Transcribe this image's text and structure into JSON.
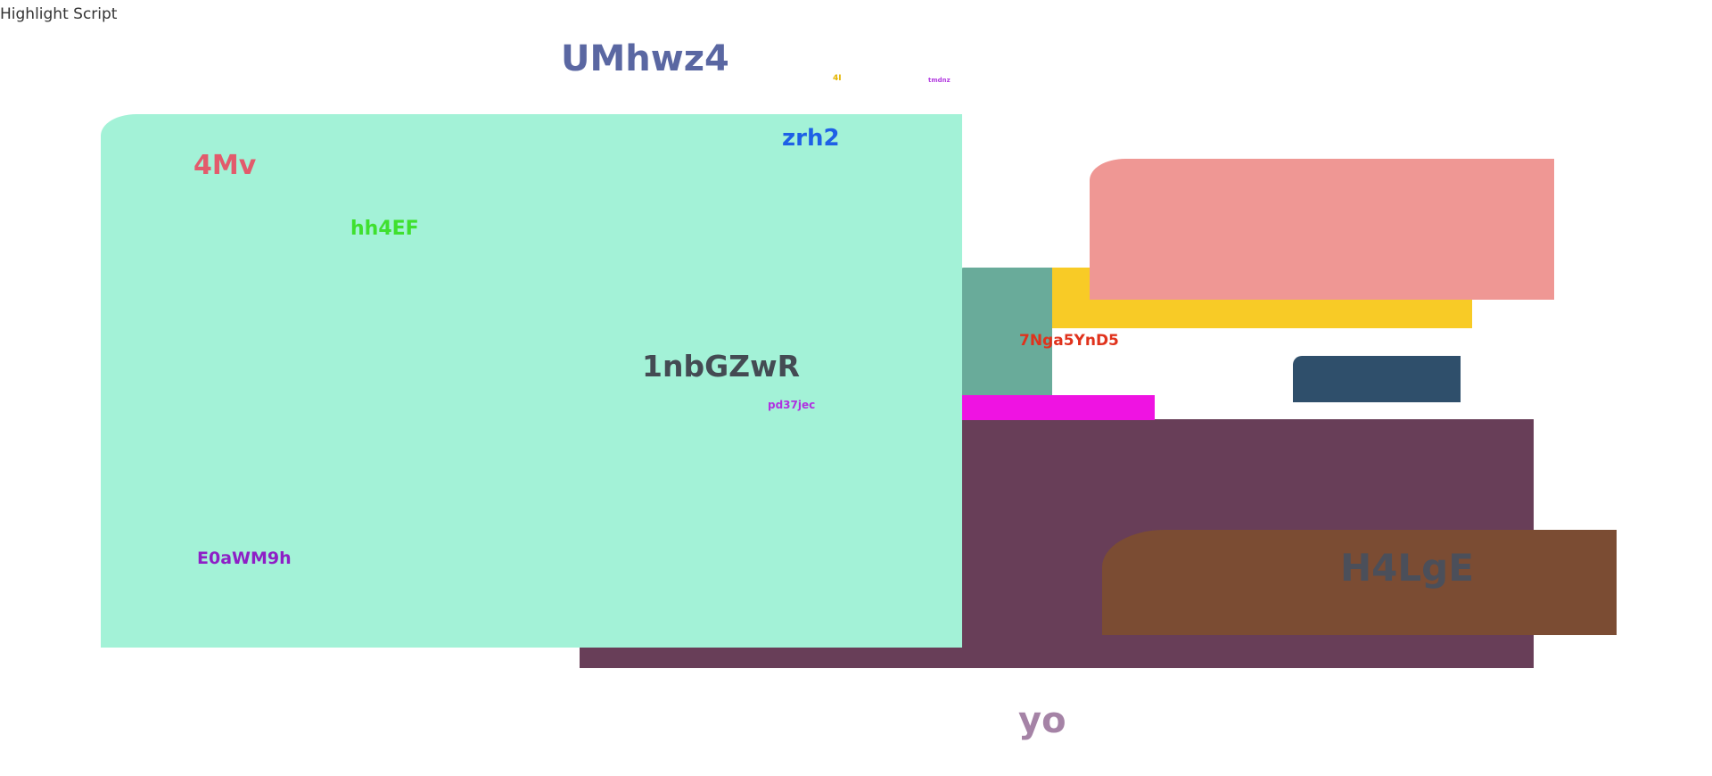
{
  "corner_label": "Highlight Script",
  "labels": {
    "l_umhwz4": "UMhwz4",
    "l_4i": "4I",
    "l_tmdnz": "tmdnz",
    "l_zrh2": "zrh2",
    "l_4mv": "4Mv",
    "l_hh4ef": "hh4EF",
    "l_1nbgzwr": "1nbGZwR",
    "l_7nga5ynd5": "7Nga5YnD5",
    "l_pd37jec": "pd37jec",
    "l_e0awm9h": "E0aWM9h",
    "l_h4lge": "H4LgE",
    "l_yo": "yo"
  },
  "colors": {
    "teal_panel": "#a3f2d7",
    "teal_dark": "#69ab9a",
    "yellow": "#f8cb26",
    "salmon": "#ef9794",
    "navy": "#2f4f6b",
    "magenta": "#ef13e2",
    "plum": "#683e58",
    "brown": "#7b4c33",
    "slate_blue": "#5a67a2",
    "amber": "#e4b500",
    "violet": "#b33ce0",
    "blue": "#1e60e6",
    "rose": "#e25b6c",
    "green": "#3fe02f",
    "charcoal": "#444b53",
    "red": "#e0321c",
    "purple_text": "#b031e0",
    "deep_purple": "#8e1fc6",
    "mauve": "#a583a6"
  }
}
